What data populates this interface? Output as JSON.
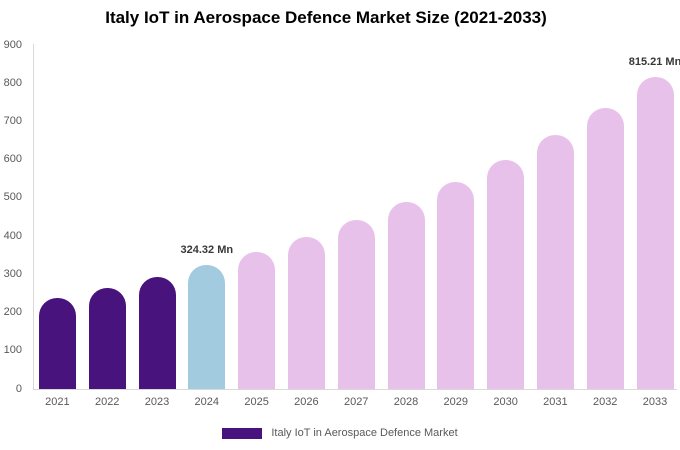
{
  "chart_data": {
    "type": "bar",
    "title": "Italy IoT in Aerospace Defence Market Size (2021-2033)",
    "categories": [
      "2021",
      "2022",
      "2023",
      "2024",
      "2025",
      "2026",
      "2027",
      "2028",
      "2029",
      "2030",
      "2031",
      "2032",
      "2033"
    ],
    "values": [
      238.5,
      264.3,
      292.8,
      324.32,
      359.3,
      398.1,
      441.0,
      488.5,
      541.2,
      599.6,
      664.2,
      735.8,
      815.21
    ],
    "unit": "Mn",
    "segments": [
      "historical",
      "historical",
      "historical",
      "current",
      "forecast",
      "forecast",
      "forecast",
      "forecast",
      "forecast",
      "forecast",
      "forecast",
      "forecast",
      "forecast"
    ],
    "colors": {
      "historical": "#48137d",
      "current": "#a3cbe0",
      "forecast": "#e8c1eb"
    },
    "annotations": [
      {
        "category": "2024",
        "text": "324.32 Mn"
      },
      {
        "category": "2033",
        "text": "815.21 Mn"
      }
    ],
    "xlabel": "",
    "ylabel": "",
    "ylim": [
      0,
      900
    ],
    "yticks": [
      0,
      100,
      200,
      300,
      400,
      500,
      600,
      700,
      800,
      900
    ],
    "grid": false,
    "legend": {
      "position": "bottom",
      "label": "Italy IoT in Aerospace Defence Market",
      "swatch_color": "#48137d"
    },
    "axis_color": "#d9d9d9",
    "tick_text_color": "#595959",
    "annotation_text_color": "#383838",
    "background_color": "#ffffff"
  }
}
